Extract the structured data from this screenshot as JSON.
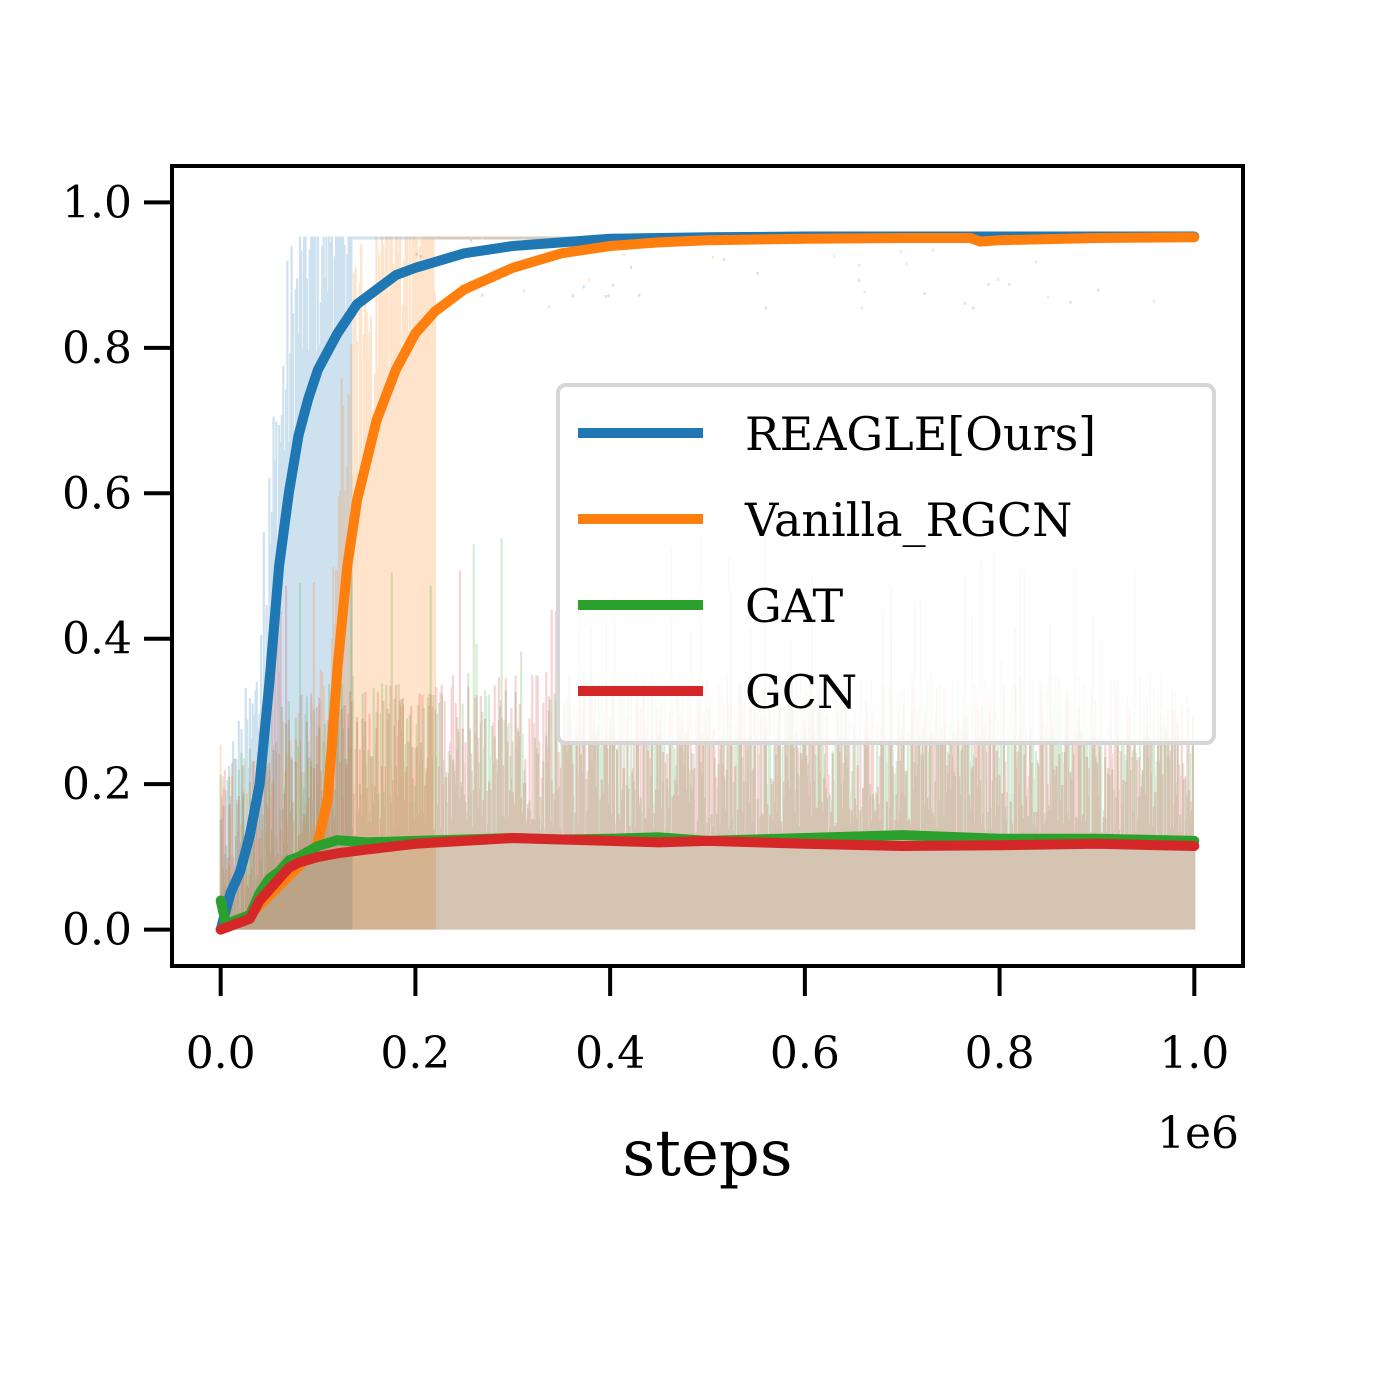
{
  "chart_data": {
    "type": "line",
    "title": "",
    "xlabel": "steps",
    "ylabel": "",
    "x_offset_label": "1e6",
    "xlim": [
      -0.05,
      1.05
    ],
    "ylim": [
      -0.05,
      1.05
    ],
    "x_ticks": [
      0.0,
      0.2,
      0.4,
      0.6,
      0.8,
      1.0
    ],
    "x_tick_labels": [
      "0.0",
      "0.2",
      "0.4",
      "0.6",
      "0.8",
      "1.0"
    ],
    "y_ticks": [
      0.0,
      0.2,
      0.4,
      0.6,
      0.8,
      1.0
    ],
    "y_tick_labels": [
      "0.0",
      "0.2",
      "0.4",
      "0.6",
      "0.8",
      "1.0"
    ],
    "grid": false,
    "legend_position": "center-right",
    "series": [
      {
        "name": "REAGLE[Ours]",
        "color": "#1f77b4",
        "x": [
          0.0,
          0.01,
          0.02,
          0.03,
          0.04,
          0.05,
          0.06,
          0.07,
          0.08,
          0.09,
          0.1,
          0.12,
          0.14,
          0.16,
          0.18,
          0.2,
          0.25,
          0.3,
          0.35,
          0.4,
          0.5,
          0.6,
          0.7,
          0.8,
          0.9,
          1.0
        ],
        "values": [
          0.0,
          0.05,
          0.08,
          0.13,
          0.2,
          0.34,
          0.5,
          0.6,
          0.68,
          0.73,
          0.77,
          0.82,
          0.86,
          0.88,
          0.9,
          0.91,
          0.93,
          0.94,
          0.945,
          0.95,
          0.952,
          0.953,
          0.953,
          0.953,
          0.953,
          0.953
        ]
      },
      {
        "name": "Vanilla_RGCN",
        "color": "#ff7f0e",
        "x": [
          0.0,
          0.03,
          0.06,
          0.09,
          0.1,
          0.11,
          0.12,
          0.13,
          0.14,
          0.16,
          0.18,
          0.2,
          0.22,
          0.25,
          0.3,
          0.35,
          0.4,
          0.45,
          0.5,
          0.6,
          0.7,
          0.77,
          0.78,
          0.8,
          0.9,
          1.0
        ],
        "values": [
          0.0,
          0.02,
          0.06,
          0.1,
          0.12,
          0.18,
          0.36,
          0.5,
          0.59,
          0.7,
          0.77,
          0.82,
          0.85,
          0.88,
          0.91,
          0.93,
          0.94,
          0.945,
          0.948,
          0.95,
          0.951,
          0.951,
          0.946,
          0.948,
          0.951,
          0.952
        ]
      },
      {
        "name": "GAT",
        "color": "#2ca02c",
        "x": [
          0.0,
          0.005,
          0.01,
          0.02,
          0.03,
          0.04,
          0.05,
          0.06,
          0.07,
          0.08,
          0.1,
          0.12,
          0.15,
          0.2,
          0.25,
          0.3,
          0.35,
          0.4,
          0.45,
          0.5,
          0.6,
          0.7,
          0.8,
          0.9,
          1.0
        ],
        "values": [
          0.04,
          0.01,
          0.01,
          0.015,
          0.02,
          0.05,
          0.07,
          0.08,
          0.095,
          0.1,
          0.115,
          0.123,
          0.12,
          0.122,
          0.124,
          0.126,
          0.124,
          0.125,
          0.127,
          0.122,
          0.126,
          0.13,
          0.125,
          0.125,
          0.122
        ]
      },
      {
        "name": "GCN",
        "color": "#d62728",
        "x": [
          0.0,
          0.01,
          0.02,
          0.03,
          0.04,
          0.05,
          0.06,
          0.07,
          0.08,
          0.1,
          0.12,
          0.15,
          0.2,
          0.25,
          0.3,
          0.35,
          0.4,
          0.45,
          0.5,
          0.6,
          0.7,
          0.8,
          0.9,
          1.0
        ],
        "values": [
          0.0,
          0.005,
          0.01,
          0.015,
          0.04,
          0.055,
          0.07,
          0.085,
          0.092,
          0.1,
          0.105,
          0.11,
          0.118,
          0.122,
          0.126,
          0.124,
          0.122,
          0.12,
          0.122,
          0.118,
          0.115,
          0.116,
          0.118,
          0.115
        ]
      }
    ]
  }
}
